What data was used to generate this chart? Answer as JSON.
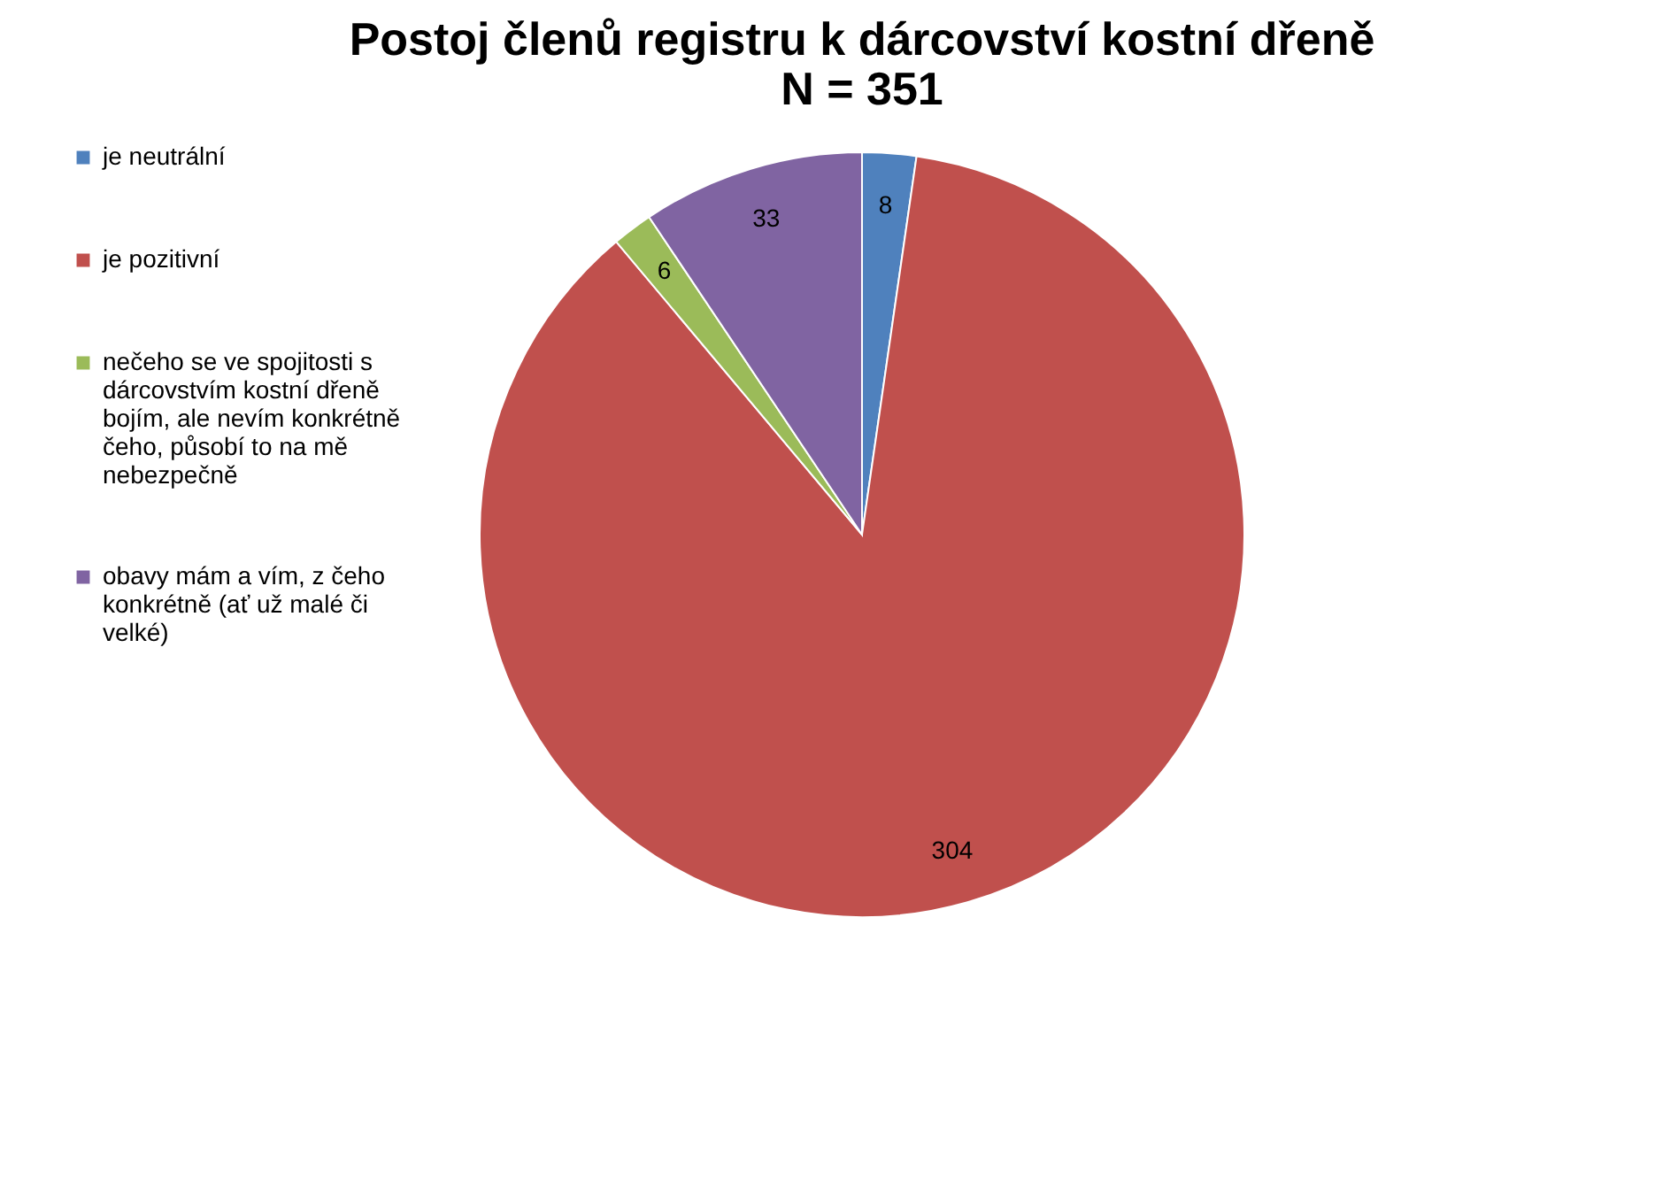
{
  "chart_data": {
    "type": "pie",
    "title": "Postoj členů registru k dárcovství kostní dřeně\nN = 351",
    "categories": [
      "je neutrální",
      "je pozitivní",
      "nečeho se ve spojitosti s dárcovstvím kostní dřeně bojím, ale nevím konkrétně čeho, působí to na mě nebezpečně",
      "obavy mám a vím, z čeho konkrétně (ať už malé či velké)"
    ],
    "values": [
      8,
      304,
      6,
      33
    ],
    "colors": [
      "#4f81bd",
      "#c0504d",
      "#9bbb59",
      "#8064a2"
    ],
    "legend": "left",
    "data_labels": true
  }
}
